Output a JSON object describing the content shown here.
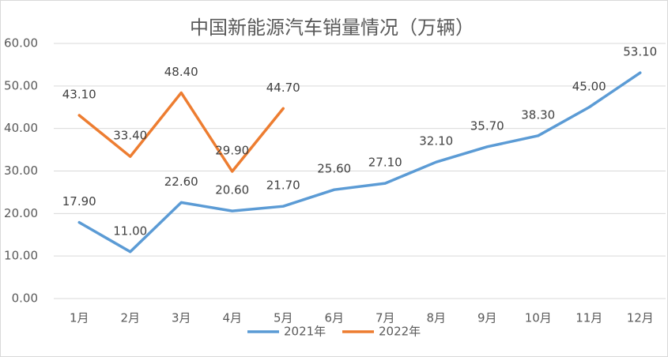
{
  "chart_data": {
    "type": "line",
    "title": "中国新能源汽车销量情况（万辆）",
    "categories": [
      "1月",
      "2月",
      "3月",
      "4月",
      "5月",
      "6月",
      "7月",
      "8月",
      "9月",
      "10月",
      "11月",
      "12月"
    ],
    "series": [
      {
        "name": "2021年",
        "color": "#5b9bd5",
        "values": [
          17.9,
          11.0,
          22.6,
          20.6,
          21.7,
          25.6,
          27.1,
          32.1,
          35.7,
          38.3,
          45.0,
          53.1
        ],
        "value_labels": [
          "17.90",
          "11.00",
          "22.60",
          "20.60",
          "21.70",
          "25.60",
          "27.10",
          "32.10",
          "35.70",
          "38.30",
          "45.00",
          "53.10"
        ]
      },
      {
        "name": "2022年",
        "color": "#ed7d31",
        "values": [
          43.1,
          33.4,
          48.4,
          29.9,
          44.7,
          null,
          null,
          null,
          null,
          null,
          null,
          null
        ],
        "value_labels": [
          "43.10",
          "33.40",
          "48.40",
          "29.90",
          "44.70",
          null,
          null,
          null,
          null,
          null,
          null,
          null
        ]
      }
    ],
    "ylim": [
      0,
      60
    ],
    "yticks": [
      {
        "value": 0,
        "label": "0.00"
      },
      {
        "value": 10,
        "label": "10.00"
      },
      {
        "value": 20,
        "label": "20.00"
      },
      {
        "value": 30,
        "label": "30.00"
      },
      {
        "value": 40,
        "label": "40.00"
      },
      {
        "value": 50,
        "label": "50.00"
      },
      {
        "value": 60,
        "label": "60.00"
      }
    ],
    "grid": true,
    "legend": "bottom"
  }
}
